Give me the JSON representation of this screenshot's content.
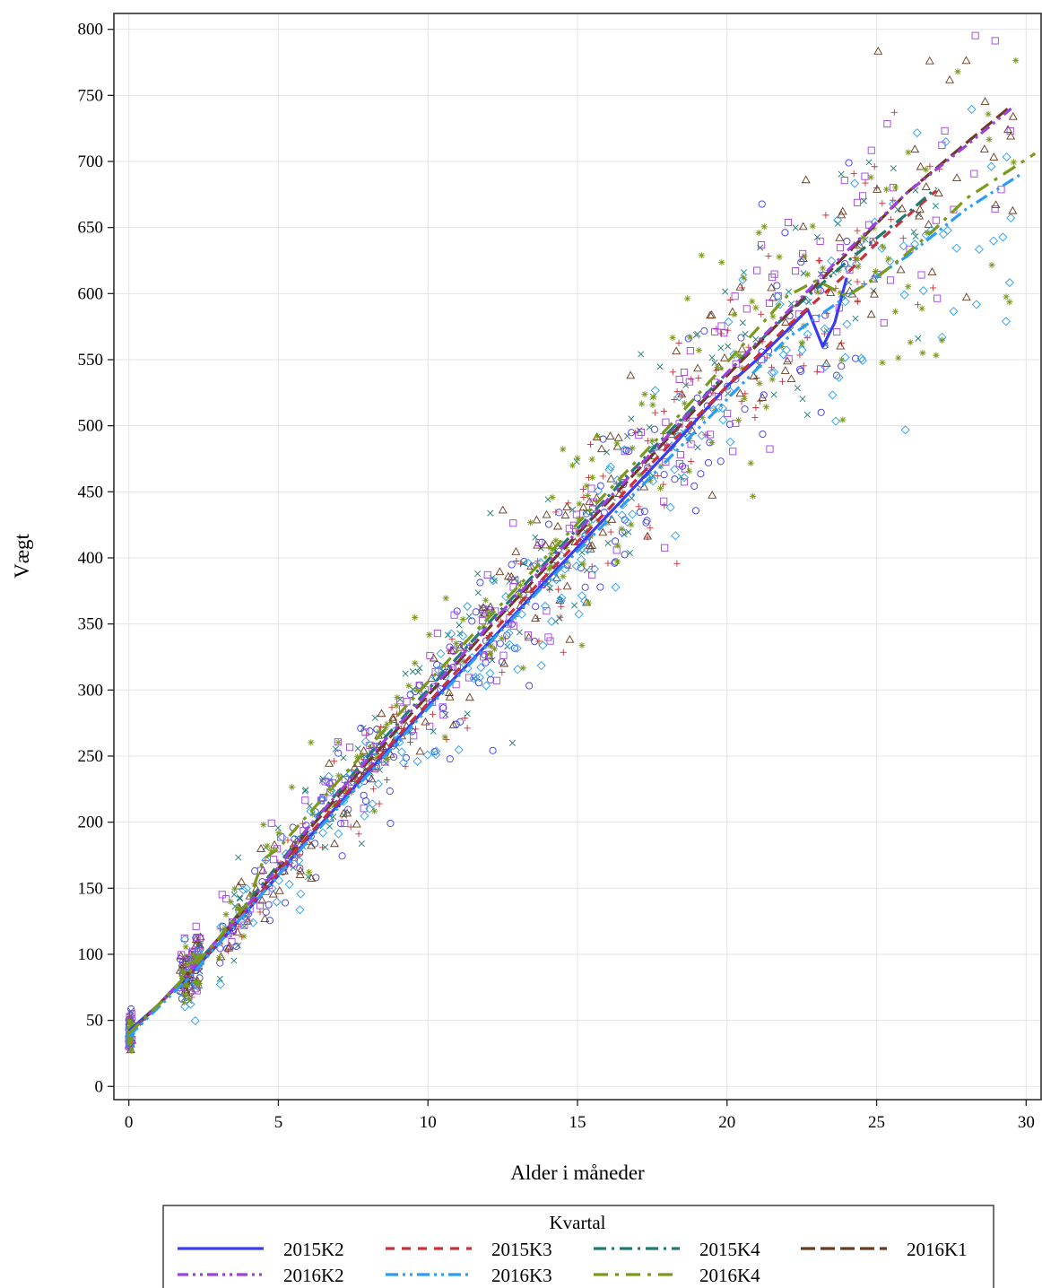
{
  "chart_data": {
    "type": "scatter",
    "title": "",
    "xlabel": "Alder i måneder",
    "ylabel": "Vægt",
    "xlim": [
      -0.5,
      30.5
    ],
    "ylim": [
      -10,
      812
    ],
    "xticks": [
      0,
      5,
      10,
      15,
      20,
      25,
      30
    ],
    "yticks": [
      0,
      50,
      100,
      150,
      200,
      250,
      300,
      350,
      400,
      450,
      500,
      550,
      600,
      650,
      700,
      750,
      800
    ],
    "grid": true,
    "legend": {
      "title": "Kvartal",
      "placement": "bottom"
    },
    "series": [
      {
        "name": "2015K2",
        "color": "#3b3bf0",
        "dash": "solid",
        "marker": "circle",
        "trend": [
          [
            0,
            42
          ],
          [
            1,
            62
          ],
          [
            2,
            84
          ],
          [
            3,
            108
          ],
          [
            4,
            134
          ],
          [
            5,
            160
          ],
          [
            6,
            188
          ],
          [
            8,
            238
          ],
          [
            10,
            288
          ],
          [
            12,
            335
          ],
          [
            14,
            384
          ],
          [
            16,
            432
          ],
          [
            18,
            480
          ],
          [
            20,
            530
          ],
          [
            21,
            550
          ],
          [
            22,
            572
          ],
          [
            22.7,
            588
          ],
          [
            23.2,
            560
          ],
          [
            23.6,
            578
          ],
          [
            24,
            612
          ]
        ]
      },
      {
        "name": "2015K3",
        "color": "#c8303a",
        "dash": "10,8",
        "marker": "plus",
        "trend": [
          [
            0,
            40
          ],
          [
            1,
            62
          ],
          [
            2,
            84
          ],
          [
            3,
            110
          ],
          [
            4,
            136
          ],
          [
            5,
            162
          ],
          [
            6,
            190
          ],
          [
            8,
            240
          ],
          [
            10,
            290
          ],
          [
            12,
            340
          ],
          [
            14,
            388
          ],
          [
            16,
            436
          ],
          [
            18,
            484
          ],
          [
            20,
            530
          ],
          [
            22,
            575
          ],
          [
            24,
            615
          ],
          [
            25,
            638
          ],
          [
            26,
            658
          ],
          [
            27,
            678
          ]
        ]
      },
      {
        "name": "2015K4",
        "color": "#1f7a72",
        "dash": "14,6,3,6",
        "marker": "x",
        "trend": [
          [
            0,
            40
          ],
          [
            1,
            62
          ],
          [
            2,
            86
          ],
          [
            3,
            112
          ],
          [
            4,
            140
          ],
          [
            5,
            168
          ],
          [
            6,
            196
          ],
          [
            8,
            250
          ],
          [
            10,
            300
          ],
          [
            12,
            350
          ],
          [
            14,
            398
          ],
          [
            16,
            446
          ],
          [
            18,
            494
          ],
          [
            20,
            540
          ],
          [
            22,
            584
          ],
          [
            24,
            624
          ],
          [
            25,
            642
          ],
          [
            26,
            660
          ],
          [
            27,
            680
          ]
        ]
      },
      {
        "name": "2016K1",
        "color": "#6b3a1f",
        "dash": "16,6",
        "marker": "triangle",
        "trend": [
          [
            0,
            40
          ],
          [
            1,
            62
          ],
          [
            2,
            86
          ],
          [
            3,
            112
          ],
          [
            4,
            138
          ],
          [
            5,
            165
          ],
          [
            6,
            194
          ],
          [
            8,
            246
          ],
          [
            10,
            296
          ],
          [
            12,
            346
          ],
          [
            14,
            394
          ],
          [
            16,
            442
          ],
          [
            18,
            490
          ],
          [
            20,
            538
          ],
          [
            22,
            584
          ],
          [
            24,
            630
          ],
          [
            26,
            676
          ],
          [
            28,
            714
          ],
          [
            29.5,
            742
          ]
        ]
      },
      {
        "name": "2016K2",
        "color": "#a040e0",
        "dash": "12,5,3,5,3,5",
        "marker": "square",
        "trend": [
          [
            0,
            38
          ],
          [
            1,
            62
          ],
          [
            2,
            86
          ],
          [
            3,
            112
          ],
          [
            4,
            138
          ],
          [
            5,
            166
          ],
          [
            6,
            196
          ],
          [
            8,
            248
          ],
          [
            10,
            298
          ],
          [
            12,
            348
          ],
          [
            14,
            396
          ],
          [
            16,
            444
          ],
          [
            18,
            492
          ],
          [
            20,
            540
          ],
          [
            22,
            586
          ],
          [
            24,
            632
          ],
          [
            26,
            676
          ],
          [
            28,
            712
          ],
          [
            29.5,
            740
          ]
        ]
      },
      {
        "name": "2016K3",
        "color": "#2a9ef5",
        "dash": "14,5,3,5,3,5",
        "marker": "diamond",
        "trend": [
          [
            0,
            38
          ],
          [
            1,
            60
          ],
          [
            2,
            82
          ],
          [
            3,
            108
          ],
          [
            4,
            134
          ],
          [
            5,
            160
          ],
          [
            6,
            186
          ],
          [
            8,
            236
          ],
          [
            10,
            286
          ],
          [
            12,
            334
          ],
          [
            14,
            382
          ],
          [
            16,
            428
          ],
          [
            18,
            474
          ],
          [
            20,
            520
          ],
          [
            22,
            566
          ],
          [
            24,
            598
          ],
          [
            26,
            628
          ],
          [
            28,
            664
          ],
          [
            29.8,
            690
          ]
        ]
      },
      {
        "name": "2016K4",
        "color": "#7a9a1a",
        "dash": "16,8,4,8",
        "marker": "star",
        "trend": [
          [
            0,
            40
          ],
          [
            1,
            62
          ],
          [
            2,
            86
          ],
          [
            3,
            112
          ],
          [
            4,
            140
          ],
          [
            4.5,
            172
          ],
          [
            5,
            180
          ],
          [
            6,
            206
          ],
          [
            8,
            256
          ],
          [
            10,
            306
          ],
          [
            12,
            354
          ],
          [
            14,
            402
          ],
          [
            16,
            450
          ],
          [
            18,
            498
          ],
          [
            20,
            548
          ],
          [
            22,
            598
          ],
          [
            23,
            610
          ],
          [
            24,
            598
          ],
          [
            25,
            612
          ],
          [
            26,
            630
          ],
          [
            27,
            650
          ],
          [
            28,
            672
          ],
          [
            30.3,
            706
          ]
        ]
      }
    ]
  }
}
